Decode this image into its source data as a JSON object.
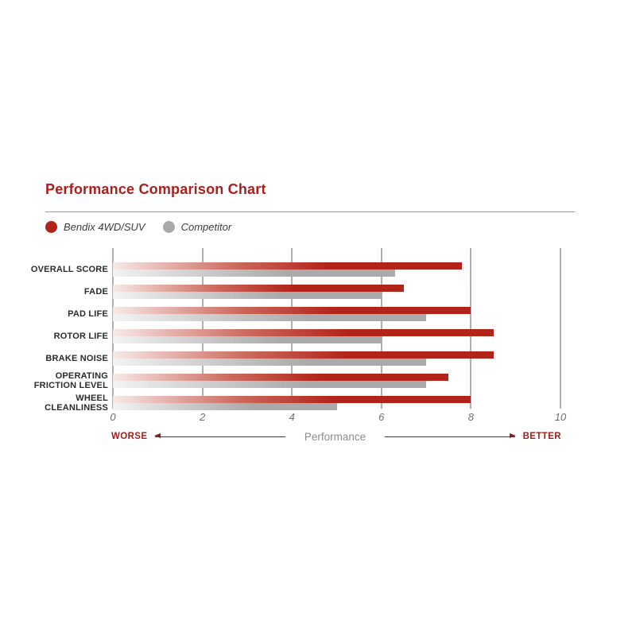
{
  "title": "Performance Comparison Chart",
  "legend": [
    {
      "label": "Bendix 4WD/SUV",
      "color": "#b2231a"
    },
    {
      "label": "Competitor",
      "color": "#a9a9a9"
    }
  ],
  "chart_data": {
    "type": "bar",
    "orientation": "horizontal",
    "title": "Performance Comparison Chart",
    "categories": [
      "OVERALL SCORE",
      "FADE",
      "PAD LIFE",
      "ROTOR LIFE",
      "BRAKE NOISE",
      "OPERATING\nFRICTION LEVEL",
      "WHEEL\nCLEANLINESS"
    ],
    "series": [
      {
        "name": "Bendix 4WD/SUV",
        "color": "#b2231a",
        "color_light": "#f7eae8",
        "color_mid": "#cc6a5e",
        "values": [
          7.8,
          6.5,
          8.0,
          8.5,
          8.5,
          7.5,
          8.0
        ]
      },
      {
        "name": "Competitor",
        "color": "#aaaaaa",
        "color_light": "#f3f3f3",
        "color_mid": "#c8c8c8",
        "values": [
          6.3,
          6.0,
          7.0,
          6.0,
          7.0,
          7.0,
          5.0
        ]
      }
    ],
    "xlim": [
      0,
      10
    ],
    "ticks": [
      "0",
      "2",
      "4",
      "6",
      "8",
      "10"
    ],
    "grid": true,
    "xlabel": "Performance",
    "axis_annotation": {
      "left": "WORSE",
      "center": "Performance",
      "right": "BETTER"
    }
  }
}
